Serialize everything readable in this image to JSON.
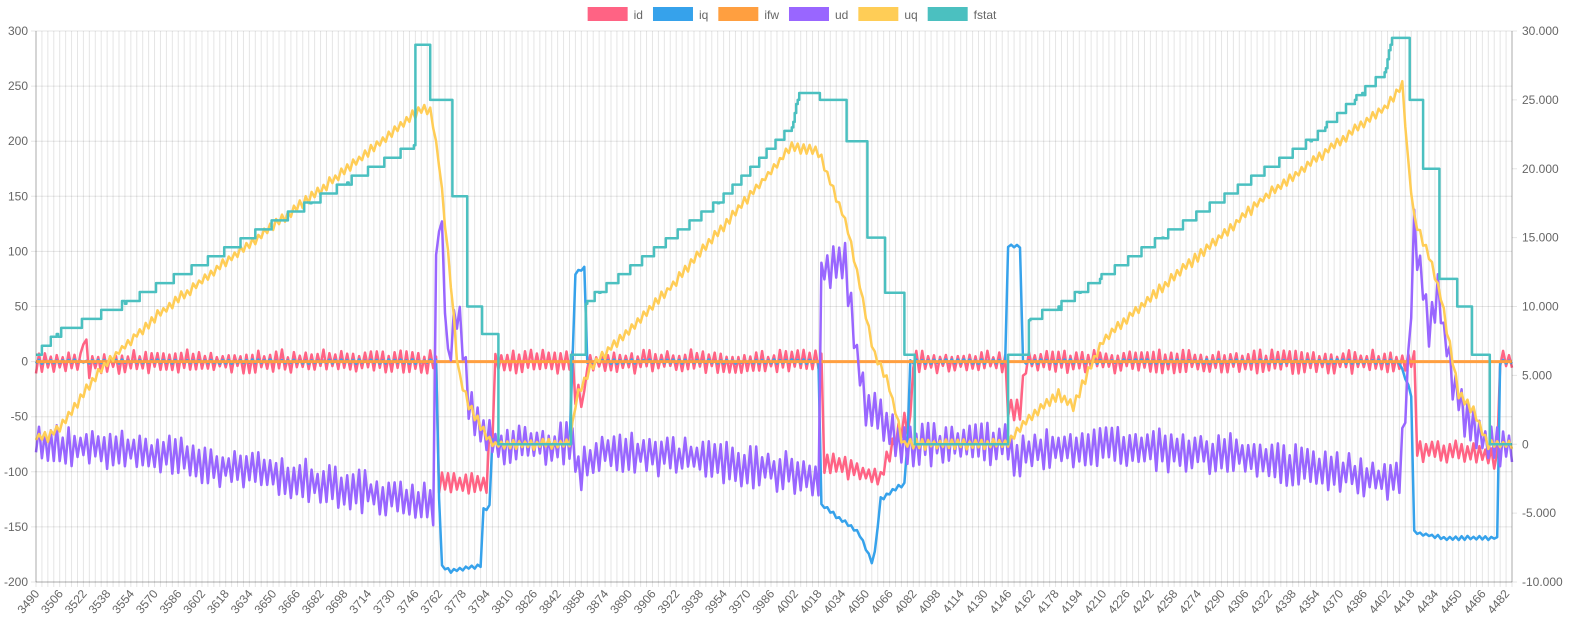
{
  "chart_data": {
    "type": "line",
    "legend_position": "top",
    "grid": true,
    "x_start": 3490,
    "x_end": 4486,
    "x_tick_step": 16,
    "x_tick_labels": [
      "3490",
      "3506",
      "3522",
      "3538",
      "3554",
      "3570",
      "3586",
      "3602",
      "3618",
      "3634",
      "3650",
      "3666",
      "3682",
      "3698",
      "3714",
      "3730",
      "3746",
      "3762",
      "3778",
      "3794",
      "3810",
      "3826",
      "3842",
      "3858",
      "3874",
      "3890",
      "3906",
      "3922",
      "3938",
      "3954",
      "3970",
      "3986",
      "4002",
      "4018",
      "4034",
      "4050",
      "4066",
      "4082",
      "4098",
      "4114",
      "4130",
      "4146",
      "4162",
      "4178",
      "4194",
      "4210",
      "4226",
      "4242",
      "4258",
      "4274",
      "4290",
      "4306",
      "4322",
      "4338",
      "4354",
      "4370",
      "4386",
      "4402",
      "4418",
      "4434",
      "4450",
      "4466",
      "4482"
    ],
    "y_left": {
      "min": -200,
      "max": 300,
      "step": 50,
      "tick_labels": [
        "-200",
        "-150",
        "-100",
        "-50",
        "0",
        "50",
        "100",
        "150",
        "200",
        "250",
        "300"
      ]
    },
    "y_right": {
      "min": -10000,
      "max": 30000,
      "step": 5000,
      "tick_labels": [
        "-10.000",
        "-5.000",
        "0",
        "5.000",
        "10.000",
        "15.000",
        "20.000",
        "25.000",
        "30.000"
      ]
    },
    "series": [
      {
        "name": "id",
        "color": "#ff6384",
        "axis": "left",
        "noise": 11,
        "points": [
          [
            3490,
            0
          ],
          [
            3520,
            0
          ],
          [
            3523,
            30
          ],
          [
            3525,
            -8
          ],
          [
            3530,
            0
          ],
          [
            3760,
            0
          ],
          [
            3761,
            -110
          ],
          [
            3795,
            -110
          ],
          [
            3796,
            -65
          ],
          [
            3799,
            -65
          ],
          [
            3800,
            0
          ],
          [
            3853,
            0
          ],
          [
            3854,
            -30
          ],
          [
            3860,
            -35
          ],
          [
            3862,
            0
          ],
          [
            4020,
            0
          ],
          [
            4021,
            -90
          ],
          [
            4060,
            -105
          ],
          [
            4075,
            -55
          ],
          [
            4080,
            -60
          ],
          [
            4081,
            0
          ],
          [
            4145,
            0
          ],
          [
            4146,
            -45
          ],
          [
            4155,
            -45
          ],
          [
            4157,
            0
          ],
          [
            4420,
            0
          ],
          [
            4421,
            -80
          ],
          [
            4470,
            -85
          ],
          [
            4476,
            -90
          ],
          [
            4477,
            0
          ],
          [
            4486,
            0
          ]
        ]
      },
      {
        "name": "iq",
        "color": "#36a2eb",
        "axis": "left",
        "noise": 2,
        "points": [
          [
            3490,
            0
          ],
          [
            3760,
            0
          ],
          [
            3763,
            -185
          ],
          [
            3770,
            -190
          ],
          [
            3790,
            -185
          ],
          [
            3792,
            -135
          ],
          [
            3797,
            -130
          ],
          [
            3798,
            -70
          ],
          [
            3802,
            -75
          ],
          [
            3850,
            -75
          ],
          [
            3852,
            0
          ],
          [
            3853,
            80
          ],
          [
            3860,
            85
          ],
          [
            3861,
            0
          ],
          [
            4018,
            0
          ],
          [
            4020,
            -130
          ],
          [
            4045,
            -155
          ],
          [
            4055,
            -185
          ],
          [
            4060,
            -125
          ],
          [
            4070,
            -115
          ],
          [
            4077,
            -110
          ],
          [
            4080,
            0
          ],
          [
            4145,
            0
          ],
          [
            4146,
            105
          ],
          [
            4155,
            105
          ],
          [
            4156,
            0
          ],
          [
            4410,
            0
          ],
          [
            4418,
            -30
          ],
          [
            4420,
            -155
          ],
          [
            4440,
            -160
          ],
          [
            4476,
            -160
          ],
          [
            4477,
            -110
          ],
          [
            4478,
            0
          ],
          [
            4486,
            0
          ]
        ]
      },
      {
        "name": "ifw",
        "color": "#ff9f40",
        "axis": "left",
        "noise": 0,
        "points": [
          [
            3490,
            0
          ],
          [
            4486,
            0
          ]
        ]
      },
      {
        "name": "ud",
        "color": "#9966ff",
        "axis": "left",
        "noise": 20,
        "points": [
          [
            3490,
            -75
          ],
          [
            3550,
            -80
          ],
          [
            3620,
            -95
          ],
          [
            3700,
            -115
          ],
          [
            3758,
            -130
          ],
          [
            3760,
            80
          ],
          [
            3763,
            150
          ],
          [
            3768,
            0
          ],
          [
            3775,
            50
          ],
          [
            3782,
            -40
          ],
          [
            3795,
            -70
          ],
          [
            3802,
            -75
          ],
          [
            3852,
            -75
          ],
          [
            3856,
            -100
          ],
          [
            3870,
            -80
          ],
          [
            3950,
            -90
          ],
          [
            4018,
            -105
          ],
          [
            4020,
            80
          ],
          [
            4025,
            85
          ],
          [
            4036,
            90
          ],
          [
            4042,
            20
          ],
          [
            4050,
            -40
          ],
          [
            4066,
            -60
          ],
          [
            4075,
            -75
          ],
          [
            4145,
            -75
          ],
          [
            4150,
            -85
          ],
          [
            4200,
            -75
          ],
          [
            4300,
            -85
          ],
          [
            4410,
            -110
          ],
          [
            4416,
            -10
          ],
          [
            4420,
            120
          ],
          [
            4430,
            30
          ],
          [
            4436,
            60
          ],
          [
            4446,
            -20
          ],
          [
            4455,
            -55
          ],
          [
            4470,
            -75
          ],
          [
            4486,
            -75
          ]
        ]
      },
      {
        "name": "uq",
        "color": "#ffcd56",
        "axis": "left",
        "noise": 5,
        "points": [
          [
            3490,
            -68
          ],
          [
            3498,
            -68
          ],
          [
            3506,
            -60
          ],
          [
            3535,
            -5
          ],
          [
            3570,
            40
          ],
          [
            3700,
            175
          ],
          [
            3750,
            230
          ],
          [
            3757,
            225
          ],
          [
            3759,
            205
          ],
          [
            3762,
            180
          ],
          [
            3770,
            70
          ],
          [
            3775,
            -10
          ],
          [
            3782,
            -40
          ],
          [
            3795,
            -70
          ],
          [
            3800,
            -75
          ],
          [
            3850,
            -75
          ],
          [
            3855,
            -30
          ],
          [
            3865,
            -5
          ],
          [
            3920,
            70
          ],
          [
            4000,
            195
          ],
          [
            4018,
            190
          ],
          [
            4030,
            150
          ],
          [
            4038,
            120
          ],
          [
            4045,
            75
          ],
          [
            4055,
            10
          ],
          [
            4065,
            -20
          ],
          [
            4070,
            -45
          ],
          [
            4075,
            -75
          ],
          [
            4146,
            -75
          ],
          [
            4150,
            -65
          ],
          [
            4170,
            -40
          ],
          [
            4180,
            -30
          ],
          [
            4190,
            -40
          ],
          [
            4210,
            20
          ],
          [
            4320,
            150
          ],
          [
            4400,
            230
          ],
          [
            4412,
            250
          ],
          [
            4416,
            180
          ],
          [
            4420,
            130
          ],
          [
            4430,
            95
          ],
          [
            4438,
            60
          ],
          [
            4450,
            -30
          ],
          [
            4460,
            -45
          ],
          [
            4470,
            -75
          ],
          [
            4486,
            -75
          ]
        ]
      },
      {
        "name": "fstat",
        "color": "#4bc0c0",
        "axis": "right",
        "noise": 0,
        "step": true,
        "points": [
          [
            3490,
            6500
          ],
          [
            3504,
            8000
          ],
          [
            3550,
            10200
          ],
          [
            3600,
            13000
          ],
          [
            3700,
            19000
          ],
          [
            3745,
            21700
          ],
          [
            3746,
            29000
          ],
          [
            3755,
            29000
          ],
          [
            3756,
            25000
          ],
          [
            3770,
            25000
          ],
          [
            3771,
            18000
          ],
          [
            3780,
            18000
          ],
          [
            3781,
            10000
          ],
          [
            3790,
            10000
          ],
          [
            3791,
            8000
          ],
          [
            3801,
            8000
          ],
          [
            3802,
            0
          ],
          [
            3850,
            0
          ],
          [
            3851,
            6500
          ],
          [
            3860,
            6500
          ],
          [
            3861,
            10200
          ],
          [
            3870,
            11000
          ],
          [
            3950,
            17500
          ],
          [
            4000,
            23000
          ],
          [
            4005,
            25500
          ],
          [
            4018,
            25500
          ],
          [
            4019,
            25000
          ],
          [
            4036,
            25000
          ],
          [
            4037,
            22000
          ],
          [
            4050,
            22000
          ],
          [
            4051,
            15000
          ],
          [
            4062,
            15000
          ],
          [
            4063,
            11000
          ],
          [
            4075,
            11000
          ],
          [
            4076,
            6500
          ],
          [
            4082,
            6500
          ],
          [
            4083,
            0
          ],
          [
            4145,
            0
          ],
          [
            4146,
            6500
          ],
          [
            4159,
            6500
          ],
          [
            4160,
            9000
          ],
          [
            4180,
            10000
          ],
          [
            4250,
            15000
          ],
          [
            4350,
            22000
          ],
          [
            4400,
            27000
          ],
          [
            4405,
            29500
          ],
          [
            4416,
            29500
          ],
          [
            4417,
            25000
          ],
          [
            4425,
            25000
          ],
          [
            4426,
            20000
          ],
          [
            4436,
            20000
          ],
          [
            4437,
            12000
          ],
          [
            4448,
            12000
          ],
          [
            4449,
            10000
          ],
          [
            4458,
            10000
          ],
          [
            4459,
            6500
          ],
          [
            4470,
            6500
          ],
          [
            4471,
            0
          ],
          [
            4486,
            0
          ]
        ]
      }
    ]
  }
}
